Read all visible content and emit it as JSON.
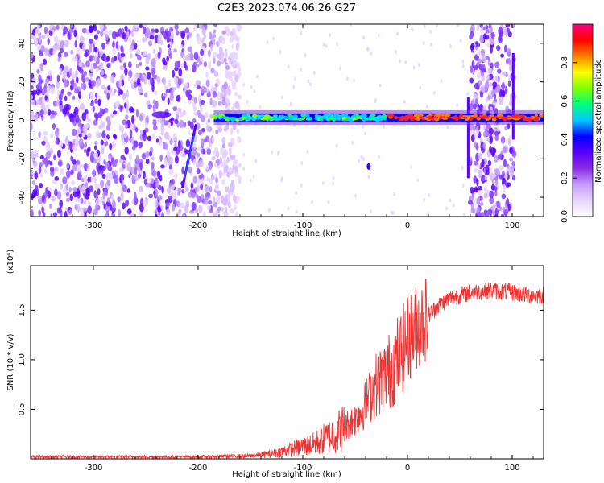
{
  "title": "C2E3.2023.074.06.26.G27",
  "chart_data": [
    {
      "type": "heatmap",
      "name": "spectrogram",
      "xlabel": "Height of straight line (km)",
      "ylabel": "Frequency (Hz)",
      "xlim": [
        -360,
        130
      ],
      "ylim": [
        -50,
        50
      ],
      "xticks": [
        -300,
        -200,
        -100,
        0,
        100
      ],
      "xtick_labels": [
        "-300",
        "-200",
        "-100",
        "0",
        "100"
      ],
      "yticks": [
        -40,
        -20,
        0,
        20,
        40
      ],
      "ytick_labels": [
        "-40",
        "-20",
        "0",
        "20",
        "40"
      ],
      "colorbar": {
        "label": "Normalized spectral amplitude",
        "range": [
          0,
          1
        ],
        "ticks": [
          0.0,
          0.2,
          0.4,
          0.6,
          0.8
        ],
        "tick_labels": [
          "0.0",
          "0.2",
          "0.4",
          "0.6",
          "0.8"
        ],
        "colormap": [
          "#ffffff",
          "#e8d4ff",
          "#c79cff",
          "#8a2be2",
          "#5a00ff",
          "#0000ff",
          "#00c8ff",
          "#00ff80",
          "#80ff00",
          "#ffff00",
          "#ff8000",
          "#ff0000",
          "#ff0080"
        ]
      },
      "features": {
        "noise_region_left": [
          -360,
          -160
        ],
        "noise_region_right": [
          60,
          102
        ],
        "main_trace": {
          "x_start": -185,
          "x_end": 130,
          "frequency": 1.5,
          "width_hz": 3
        }
      }
    },
    {
      "type": "line",
      "name": "snr",
      "xlabel": "Height of straight line (km)",
      "ylabel": "SNR (10 * v/v)",
      "scale_label": "(x10⁴)",
      "xlim": [
        -360,
        130
      ],
      "ylim": [
        0,
        1.95
      ],
      "xticks": [
        -300,
        -200,
        -100,
        0,
        100
      ],
      "xtick_labels": [
        "-300",
        "-200",
        "-100",
        "0",
        "100"
      ],
      "yticks": [
        0.5,
        1.0,
        1.5
      ],
      "ytick_labels": [
        "0.5",
        "1.0",
        "1.5"
      ],
      "color": "#ee3333",
      "series": [
        {
          "x": [
            -360,
            -300,
            -250,
            -200,
            -150,
            -130,
            -110,
            -90,
            -70,
            -50,
            -40,
            -30,
            -20,
            -10,
            0,
            10,
            20,
            30,
            40,
            60,
            80,
            100,
            115,
            130
          ],
          "y": [
            0.02,
            0.02,
            0.02,
            0.02,
            0.03,
            0.05,
            0.1,
            0.15,
            0.25,
            0.4,
            0.55,
            0.75,
            0.85,
            1.0,
            1.2,
            1.35,
            1.45,
            1.55,
            1.62,
            1.68,
            1.7,
            1.68,
            1.65,
            1.65
          ]
        }
      ]
    }
  ]
}
